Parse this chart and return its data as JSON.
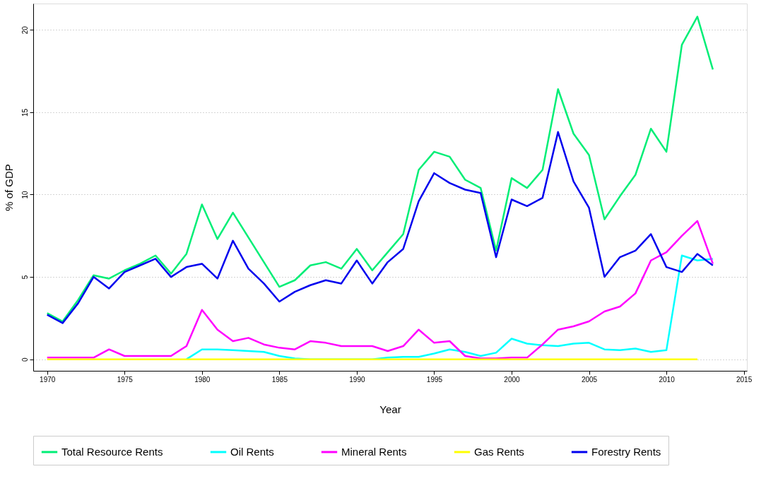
{
  "chart_data": {
    "type": "line",
    "xlabel": "Year",
    "ylabel": "% of GDP",
    "x": [
      1970,
      1971,
      1972,
      1973,
      1974,
      1975,
      1976,
      1977,
      1978,
      1979,
      1980,
      1981,
      1982,
      1983,
      1984,
      1985,
      1986,
      1987,
      1988,
      1989,
      1990,
      1991,
      1992,
      1993,
      1994,
      1995,
      1996,
      1997,
      1998,
      1999,
      2000,
      2001,
      2002,
      2003,
      2004,
      2005,
      2006,
      2007,
      2008,
      2009,
      2010,
      2011,
      2012,
      2013
    ],
    "xlim": [
      1969.1,
      2015.2
    ],
    "xticks": [
      1970,
      1975,
      1980,
      1985,
      1990,
      1995,
      2000,
      2005,
      2010,
      2015
    ],
    "ylim": [
      -0.7,
      21.6
    ],
    "yticks": [
      0,
      5,
      10,
      15,
      20
    ],
    "grid": "y",
    "legend": "bottom",
    "marker": "none",
    "line_style": "solid",
    "series": [
      {
        "name": "Total Resource Rents",
        "color": "#00ee76",
        "values": [
          2.8,
          2.3,
          3.6,
          5.1,
          4.9,
          5.4,
          5.8,
          6.3,
          5.2,
          6.4,
          9.4,
          7.3,
          8.9,
          7.4,
          5.9,
          4.4,
          4.8,
          5.7,
          5.9,
          5.5,
          6.7,
          5.4,
          6.5,
          7.6,
          11.5,
          12.6,
          12.3,
          10.9,
          10.4,
          6.6,
          11.0,
          10.4,
          11.5,
          16.4,
          13.7,
          12.4,
          8.5,
          9.9,
          11.2,
          14.0,
          12.6,
          19.1,
          20.8,
          17.6
        ]
      },
      {
        "name": "Oil Rents",
        "color": "#00ffff",
        "values": [
          null,
          null,
          null,
          null,
          null,
          null,
          null,
          null,
          null,
          0,
          0.6,
          0.6,
          0.55,
          0.5,
          0.45,
          0.2,
          0.05,
          0,
          0,
          0,
          0,
          0,
          0.1,
          0.15,
          0.15,
          0.35,
          0.6,
          0.45,
          0.2,
          0.4,
          1.25,
          0.95,
          0.85,
          0.8,
          0.95,
          1.0,
          0.6,
          0.55,
          0.65,
          0.45,
          0.55,
          6.3,
          6.0,
          6.1
        ]
      },
      {
        "name": "Mineral Rents",
        "color": "#ff00ff",
        "values": [
          0.1,
          0.1,
          0.1,
          0.1,
          0.6,
          0.2,
          0.2,
          0.2,
          0.2,
          0.8,
          3.0,
          1.8,
          1.1,
          1.3,
          0.9,
          0.7,
          0.6,
          1.1,
          1.0,
          0.8,
          0.8,
          0.8,
          0.5,
          0.8,
          1.8,
          1.0,
          1.1,
          0.2,
          0.05,
          0.05,
          0.1,
          0.1,
          0.9,
          1.8,
          2.0,
          2.3,
          2.9,
          3.2,
          4.0,
          6.0,
          6.5,
          7.5,
          8.4,
          5.8
        ]
      },
      {
        "name": "Gas Rents",
        "color": "#ffff00",
        "values": [
          0,
          0,
          0,
          0,
          0,
          0,
          0,
          0,
          0,
          0,
          0,
          0,
          0,
          0,
          0,
          0,
          0,
          0,
          0,
          0,
          0,
          0,
          0,
          0,
          0,
          0,
          0,
          0,
          0,
          0,
          0,
          0,
          0,
          0,
          0,
          0,
          0,
          0,
          0,
          0,
          0,
          0,
          0,
          null
        ]
      },
      {
        "name": "Forestry Rents",
        "color": "#0000ee",
        "values": [
          2.7,
          2.2,
          3.4,
          5.0,
          4.3,
          5.3,
          5.7,
          6.1,
          5.0,
          5.6,
          5.8,
          4.9,
          7.2,
          5.5,
          4.6,
          3.5,
          4.1,
          4.5,
          4.8,
          4.6,
          6.0,
          4.6,
          5.9,
          6.7,
          9.6,
          11.3,
          10.7,
          10.3,
          10.1,
          6.2,
          9.7,
          9.3,
          9.8,
          13.8,
          10.8,
          9.2,
          5.0,
          6.2,
          6.6,
          7.6,
          5.6,
          5.3,
          6.4,
          5.7
        ]
      }
    ]
  }
}
